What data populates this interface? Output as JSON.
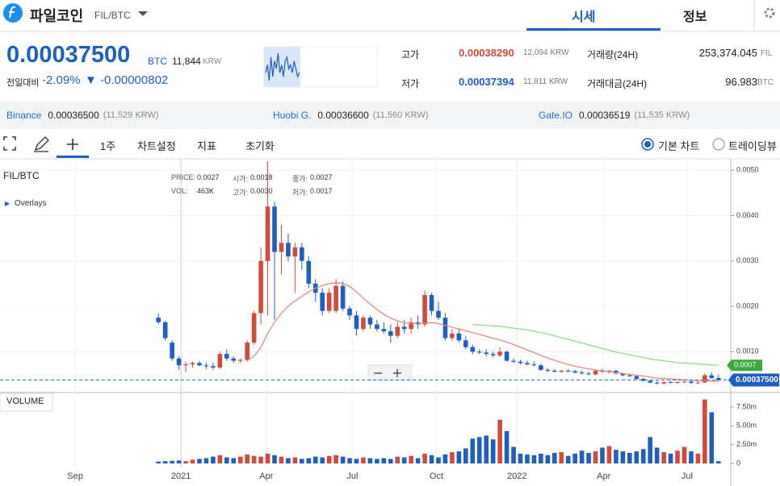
{
  "header": {
    "title": "파일코인",
    "pair": "FIL/BTC",
    "tabs": [
      "시세",
      "정보"
    ]
  },
  "ticker": {
    "price": "0.00037500",
    "price_unit": "BTC",
    "krw": "11,844",
    "krw_unit": "KRW",
    "change_label": "전일대비",
    "change_pct": "-2.09%",
    "change_abs": "▼ -0.00000802",
    "high_label": "고가",
    "high": "0.00038290",
    "high_krw": "12,094 KRW",
    "low_label": "저가",
    "low": "0.00037394",
    "low_krw": "11,811 KRW",
    "volume_label": "거래량(24H)",
    "volume": "253,374.045",
    "volume_unit": "FIL",
    "amount_label": "거래대금(24H)",
    "amount": "96.983",
    "amount_unit": "BTC",
    "sparkline": [
      5,
      7,
      3,
      9,
      4,
      8,
      6,
      10,
      5,
      7,
      4,
      8,
      9,
      6,
      7,
      5,
      8,
      6,
      4,
      5
    ]
  },
  "exchanges": [
    {
      "name": "Binance",
      "price": "0.00036500",
      "krw": "(11,529 KRW)"
    },
    {
      "name": "Huobi G.",
      "price": "0.00036600",
      "krw": "(11,560 KRW)"
    },
    {
      "name": "Gate.IO",
      "price": "0.00036519",
      "krw": "(11,535 KRW)"
    }
  ],
  "toolbar": {
    "period": "1주",
    "settings": "차트설정",
    "indicators": "지표",
    "reset": "초기화",
    "basic": "기본 차트",
    "tradingview": "트레이딩뷰"
  },
  "chart_data": {
    "type": "candlestick",
    "title": "FIL/BTC",
    "overlays": "Overlays",
    "volume_title": "VOLUME",
    "info": [
      [
        "PRICE:",
        "0.0027"
      ],
      [
        "시가:",
        "0.0018"
      ],
      [
        "종가:",
        "0.0027"
      ],
      [
        "VOL:",
        "463K"
      ],
      [
        "고가:",
        "0.0030"
      ],
      [
        "저가:",
        "0.0017"
      ]
    ],
    "up_color": "#cf4b3c",
    "down_color": "#1f5fbf",
    "xlim": [
      -23.2,
      83.8
    ],
    "xticks": [
      {
        "value": -12.2,
        "label": "Sep"
      },
      {
        "value": 3.3,
        "label": "2021"
      },
      {
        "value": 15.8,
        "label": "Apr"
      },
      {
        "value": 28.4,
        "label": "Jul"
      },
      {
        "value": 40.7,
        "label": "Oct"
      },
      {
        "value": 52.5,
        "label": "2022"
      },
      {
        "value": 65.2,
        "label": "Apr"
      },
      {
        "value": 77.4,
        "label": "Jul"
      }
    ],
    "ylim": [
      0.0001,
      0.0052
    ],
    "yticks": [
      {
        "value": 0.001,
        "label": "0.0010"
      },
      {
        "value": 0.002,
        "label": "0.0020"
      },
      {
        "value": 0.003,
        "label": "0.0030"
      },
      {
        "value": 0.004,
        "label": "0.0040"
      },
      {
        "value": 0.005,
        "label": "0.0050"
      }
    ],
    "ohlc": [
      [
        0.00175,
        0.00185,
        0.0016,
        0.00165
      ],
      [
        0.00165,
        0.00168,
        0.00125,
        0.0013
      ],
      [
        0.0012,
        0.00125,
        0.0008,
        0.00085
      ],
      [
        0.00085,
        0.0009,
        0.0006,
        0.0007
      ],
      [
        0.0007,
        0.00078,
        0.00055,
        0.00072
      ],
      [
        0.00072,
        0.00078,
        0.00065,
        0.00075
      ],
      [
        0.00075,
        0.0008,
        0.00068,
        0.0007
      ],
      [
        0.0007,
        0.00076,
        0.00062,
        0.00068
      ],
      [
        0.00068,
        0.00075,
        0.0006,
        0.00065
      ],
      [
        0.00065,
        0.001,
        0.00062,
        0.00095
      ],
      [
        0.00095,
        0.00105,
        0.0008,
        0.00085
      ],
      [
        0.00085,
        0.0009,
        0.00075,
        0.0008
      ],
      [
        0.0008,
        0.00085,
        0.00075,
        0.00082
      ],
      [
        0.00082,
        0.00125,
        0.00078,
        0.0012
      ],
      [
        0.0012,
        0.0019,
        0.00115,
        0.00185
      ],
      [
        0.00185,
        0.0033,
        0.0016,
        0.003
      ],
      [
        0.003,
        0.0052,
        0.0018,
        0.0042
      ],
      [
        0.0042,
        0.0043,
        0.0017,
        0.0032
      ],
      [
        0.0032,
        0.0038,
        0.0027,
        0.0034
      ],
      [
        0.0034,
        0.0036,
        0.003,
        0.0031
      ],
      [
        0.0031,
        0.0034,
        0.0023,
        0.0033
      ],
      [
        0.0033,
        0.0034,
        0.0028,
        0.003
      ],
      [
        0.003,
        0.0031,
        0.0024,
        0.0025
      ],
      [
        0.0025,
        0.0026,
        0.0021,
        0.0023
      ],
      [
        0.0023,
        0.0024,
        0.0018,
        0.0019
      ],
      [
        0.0019,
        0.0024,
        0.00185,
        0.0023
      ],
      [
        0.0019,
        0.0026,
        0.00185,
        0.00245
      ],
      [
        0.00245,
        0.00255,
        0.0019,
        0.00195
      ],
      [
        0.00195,
        0.002,
        0.0017,
        0.0018
      ],
      [
        0.0018,
        0.0019,
        0.00135,
        0.0015
      ],
      [
        0.0015,
        0.0018,
        0.00145,
        0.00175
      ],
      [
        0.00175,
        0.0018,
        0.0015,
        0.0016
      ],
      [
        0.0016,
        0.0017,
        0.00145,
        0.0015
      ],
      [
        0.0015,
        0.00165,
        0.0014,
        0.00145
      ],
      [
        0.00145,
        0.0016,
        0.0012,
        0.00135
      ],
      [
        0.00135,
        0.00165,
        0.0013,
        0.00155
      ],
      [
        0.00155,
        0.0017,
        0.0014,
        0.0015
      ],
      [
        0.0015,
        0.00175,
        0.0014,
        0.00165
      ],
      [
        0.00165,
        0.0018,
        0.0015,
        0.0016
      ],
      [
        0.0016,
        0.00235,
        0.00155,
        0.00225
      ],
      [
        0.00225,
        0.0023,
        0.0018,
        0.0019
      ],
      [
        0.0019,
        0.0021,
        0.0017,
        0.00175
      ],
      [
        0.00175,
        0.00185,
        0.00125,
        0.0013
      ],
      [
        0.0013,
        0.0015,
        0.00125,
        0.0014
      ],
      [
        0.0014,
        0.0015,
        0.0012,
        0.00125
      ],
      [
        0.00125,
        0.00135,
        0.00105,
        0.0011
      ],
      [
        0.0011,
        0.00115,
        0.00095,
        0.001
      ],
      [
        0.001,
        0.00105,
        0.00095,
        0.00098
      ],
      [
        0.00098,
        0.00105,
        0.0009,
        0.00095
      ],
      [
        0.00095,
        0.001,
        0.00088,
        0.00092
      ],
      [
        0.00092,
        0.0011,
        0.00088,
        0.001
      ],
      [
        0.001,
        0.00102,
        0.00078,
        0.0008
      ],
      [
        0.0008,
        0.00085,
        0.00075,
        0.00078
      ],
      [
        0.00078,
        0.00082,
        0.00072,
        0.00075
      ],
      [
        0.00075,
        0.0008,
        0.0007,
        0.00072
      ],
      [
        0.00072,
        0.00078,
        0.00068,
        0.0007
      ],
      [
        0.0007,
        0.00074,
        0.00058,
        0.0006
      ],
      [
        0.0006,
        0.00064,
        0.00055,
        0.00058
      ],
      [
        0.00058,
        0.00062,
        0.00054,
        0.00056
      ],
      [
        0.00056,
        0.0006,
        0.00053,
        0.00058
      ],
      [
        0.00058,
        0.00062,
        0.00055,
        0.00057
      ],
      [
        0.00057,
        0.0006,
        0.00052,
        0.00054
      ],
      [
        0.00054,
        0.00058,
        0.0005,
        0.00052
      ],
      [
        0.00052,
        0.00056,
        0.00048,
        0.0005
      ],
      [
        0.0005,
        0.0006,
        0.00048,
        0.00058
      ],
      [
        0.00058,
        0.00062,
        0.00054,
        0.00056
      ],
      [
        0.00056,
        0.0006,
        0.00052,
        0.00058
      ],
      [
        0.00058,
        0.0006,
        0.0005,
        0.00052
      ],
      [
        0.00052,
        0.00054,
        0.00046,
        0.00048
      ],
      [
        0.00048,
        0.00052,
        0.00044,
        0.00046
      ],
      [
        0.00046,
        0.00048,
        0.00038,
        0.0004
      ],
      [
        0.0004,
        0.00042,
        0.00034,
        0.00036
      ],
      [
        0.00036,
        0.00038,
        0.0003,
        0.00032
      ],
      [
        0.00032,
        0.00035,
        0.00028,
        0.0003
      ],
      [
        0.0003,
        0.00034,
        0.00028,
        0.00033
      ],
      [
        0.00033,
        0.00036,
        0.0003,
        0.00032
      ],
      [
        0.00032,
        0.00035,
        0.0003,
        0.00033
      ],
      [
        0.00033,
        0.00036,
        0.00031,
        0.00034
      ],
      [
        0.00034,
        0.00036,
        0.0003,
        0.00031
      ],
      [
        0.00031,
        0.00034,
        0.00029,
        0.00032
      ],
      [
        0.00032,
        0.00052,
        0.00031,
        0.00048
      ],
      [
        0.00048,
        0.00054,
        0.0004,
        0.00042
      ],
      [
        0.00042,
        0.0005,
        0.00036,
        0.000375
      ]
    ],
    "volume": [
      250000,
      300000,
      350000,
      400000,
      300000,
      500000,
      600000,
      700000,
      900000,
      1100000,
      800000,
      700000,
      900000,
      1200000,
      1000000,
      900000,
      1300000,
      1100000,
      900000,
      700000,
      800000,
      600000,
      700000,
      900000,
      800000,
      1000000,
      1100000,
      900000,
      700000,
      600000,
      800000,
      700000,
      600000,
      700000,
      600000,
      900000,
      800000,
      1000000,
      700000,
      1300000,
      1100000,
      800000,
      1200000,
      1500000,
      1600000,
      2000000,
      3300000,
      3500000,
      3700000,
      3200000,
      5800000,
      4300000,
      2200000,
      1300000,
      1200000,
      1100000,
      1300000,
      1100000,
      1400000,
      1500000,
      1000000,
      1300000,
      1700000,
      1400000,
      1600000,
      2100000,
      2300000,
      1800000,
      1600000,
      1400000,
      1600000,
      1900000,
      3500000,
      2100000,
      1500000,
      1300000,
      1700000,
      2200000,
      1600000,
      1300000,
      8500000,
      6800000,
      300000
    ],
    "vlim": [
      0,
      9100000
    ],
    "vticks": [
      0,
      {
        "value": 2500000,
        "label": "2.50m"
      },
      {
        "value": 5000000,
        "label": "5.00m"
      },
      {
        "value": 7500000,
        "label": "7.50m"
      }
    ],
    "series": [
      {
        "color": "#e8897e",
        "values": [
          null,
          null,
          null,
          null,
          null,
          null,
          null,
          null,
          null,
          null,
          null,
          null,
          null,
          0.0008,
          0.0009,
          0.0011,
          0.0014,
          0.00165,
          0.00185,
          0.002,
          0.00212,
          0.00222,
          0.00232,
          0.0024,
          0.00246,
          0.0025,
          0.00252,
          0.0025,
          0.00244,
          0.00232,
          0.00218,
          0.00205,
          0.00193,
          0.00182,
          0.00174,
          0.00168,
          0.00164,
          0.00162,
          0.00162,
          0.00163,
          0.00164,
          0.00162,
          0.00158,
          0.00154,
          0.0015,
          0.00146,
          0.00142,
          0.00138,
          0.00134,
          0.0013,
          0.00126,
          0.00121,
          0.00116,
          0.0011,
          0.00104,
          0.00098,
          0.00092,
          0.00086,
          0.00081,
          0.00076,
          0.00072,
          0.00068,
          0.00065,
          0.00062,
          0.0006,
          0.00058,
          0.00056,
          0.00054,
          0.00052,
          0.0005,
          0.00048,
          0.00046,
          0.00044,
          0.00042,
          0.00041,
          0.0004,
          0.00039,
          0.00038,
          0.00037,
          0.00036,
          0.00036,
          0.00035,
          0.00035
        ]
      },
      {
        "color": "#8fd98a",
        "last_label": "0.0007",
        "values": [
          null,
          null,
          null,
          null,
          null,
          null,
          null,
          null,
          null,
          null,
          null,
          null,
          null,
          null,
          null,
          null,
          null,
          null,
          null,
          null,
          null,
          null,
          null,
          null,
          null,
          null,
          null,
          null,
          null,
          null,
          null,
          null,
          null,
          null,
          null,
          null,
          null,
          null,
          null,
          null,
          null,
          null,
          null,
          null,
          null,
          null,
          0.0016,
          0.00159,
          0.00158,
          0.00157,
          0.00156,
          0.00154,
          0.00152,
          0.0015,
          0.00148,
          0.00145,
          0.00142,
          0.00139,
          0.00135,
          0.00131,
          0.00127,
          0.00123,
          0.00119,
          0.00115,
          0.00111,
          0.00107,
          0.00103,
          0.00099,
          0.00096,
          0.00093,
          0.0009,
          0.00087,
          0.00084,
          0.00082,
          0.0008,
          0.00078,
          0.00076,
          0.00075,
          0.00074,
          0.00073,
          0.00072,
          0.00071,
          0.0007
        ]
      }
    ],
    "last_price": 0.000375,
    "last_price_label": "0.00037500",
    "grid": true
  }
}
